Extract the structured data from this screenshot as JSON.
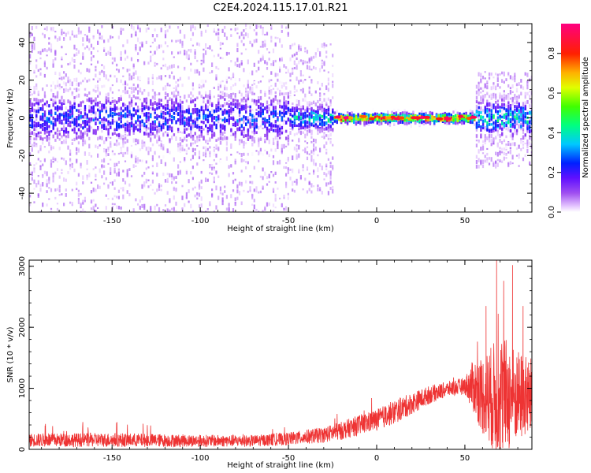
{
  "title": "C2E4.2024.115.17.01.R21",
  "chart_data": [
    {
      "type": "heatmap",
      "xlabel": "Height of straight line (km)",
      "ylabel": "Frequency (Hz)",
      "xlim": [
        -197,
        88
      ],
      "ylim": [
        -50,
        50
      ],
      "x_ticks": [
        -150,
        -100,
        -50,
        0,
        50
      ],
      "x_tick_labels": [
        "-150",
        "-100",
        "-50",
        "0",
        "50"
      ],
      "y_ticks": [
        -40,
        -20,
        0,
        20,
        40
      ],
      "y_tick_labels": [
        "-40",
        "-20",
        "0",
        "20",
        "40"
      ],
      "grid": false,
      "colorbar": {
        "label": "Normalized spectral amplitude",
        "range": [
          0,
          0.95
        ],
        "ticks": [
          0.0,
          0.2,
          0.4,
          0.6,
          0.8
        ],
        "tick_labels": [
          "0.0",
          "0.2",
          "0.4",
          "0.6",
          "0.8"
        ],
        "colormap": "hsv-reversed (white-purple-blue-cyan-green-yellow-orange-red-magenta)"
      },
      "bands": [
        {
          "x_range": [
            -197,
            -50
          ],
          "center_freq": 0,
          "core_halfwidth_hz": 8,
          "peak_amplitude": 0.3,
          "scatter_halfwidth_hz": 50
        },
        {
          "x_range": [
            -50,
            -25
          ],
          "center_freq": 0,
          "core_halfwidth_hz": 4,
          "peak_amplitude": 0.45,
          "scatter_halfwidth_hz": 40
        },
        {
          "x_range": [
            -25,
            55
          ],
          "center_freq": 0,
          "core_halfwidth_hz": 1.5,
          "peak_amplitude": 0.9,
          "scatter_halfwidth_hz": 2
        },
        {
          "x_range": [
            55,
            88
          ],
          "center_freq": 0,
          "core_halfwidth_hz": 6,
          "peak_amplitude": 0.45,
          "scatter_halfwidth_hz": 25
        }
      ]
    },
    {
      "type": "line",
      "xlabel": "Height of straight line (km)",
      "ylabel": "SNR (10 * v/v)",
      "xlim": [
        -197,
        88
      ],
      "ylim": [
        0,
        3100
      ],
      "x_ticks": [
        -150,
        -100,
        -50,
        0,
        50
      ],
      "x_tick_labels": [
        "-150",
        "-100",
        "-50",
        "0",
        "50"
      ],
      "y_ticks": [
        0,
        1000,
        2000,
        3000
      ],
      "y_tick_labels": [
        "0",
        "1000",
        "2000",
        "3000"
      ],
      "grid": false,
      "series": [
        {
          "color": "#ee3333",
          "envelope": {
            "x": [
              -197,
              -150,
              -100,
              -70,
              -50,
              -30,
              -20,
              -10,
              0,
              10,
              20,
              30,
              40,
              50,
              55,
              60,
              65,
              70,
              75,
              80,
              88
            ],
            "baseline": [
              120,
              120,
              110,
              110,
              140,
              200,
              260,
              350,
              430,
              550,
              700,
              850,
              950,
              1000,
              900,
              700,
              600,
              550,
              600,
              650,
              650
            ],
            "amplitude": [
              220,
              230,
              200,
              190,
              210,
              260,
              300,
              330,
              350,
              400,
              350,
              300,
              250,
              280,
              900,
              1300,
              1700,
              2100,
              1800,
              1500,
              1300
            ]
          },
          "peaks": [
            {
              "x": 68,
              "y": 3100
            },
            {
              "x": 77,
              "y": 3020
            },
            {
              "x": 72,
              "y": 2760
            },
            {
              "x": 62,
              "y": 2350
            },
            {
              "x": 83,
              "y": 2350
            }
          ]
        }
      ]
    }
  ]
}
